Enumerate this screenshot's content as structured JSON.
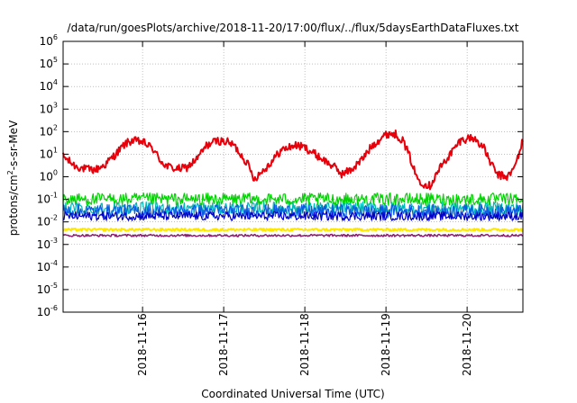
{
  "chart_data": {
    "type": "line",
    "title": "/data/run/goesPlots/archive/2018-11-20/17:00/flux/../flux/5daysEarthDataFluxes.txt",
    "xlabel": "Coordinated Universal Time (UTC)",
    "ylabel": "protons/cm²-s-sr-MeV",
    "ylabel_parts": {
      "pre": "protons/cm",
      "sup": "2",
      "post": "-s-sr-MeV"
    },
    "yscale": "log",
    "ylim_exp": [
      -6,
      6
    ],
    "y_ticks": [
      {
        "base": "10",
        "exp": "-6"
      },
      {
        "base": "10",
        "exp": "-5"
      },
      {
        "base": "10",
        "exp": "-4"
      },
      {
        "base": "10",
        "exp": "-3"
      },
      {
        "base": "10",
        "exp": "-2"
      },
      {
        "base": "10",
        "exp": "-1"
      },
      {
        "base": "10",
        "exp": "0"
      },
      {
        "base": "10",
        "exp": "1"
      },
      {
        "base": "10",
        "exp": "2"
      },
      {
        "base": "10",
        "exp": "3"
      },
      {
        "base": "10",
        "exp": "4"
      },
      {
        "base": "10",
        "exp": "5"
      },
      {
        "base": "10",
        "exp": "6"
      }
    ],
    "xlim": [
      "2018-11-15 00:30",
      "2018-11-20 16:30"
    ],
    "x_ticks": [
      "2018-11-16",
      "2018-11-17",
      "2018-11-18",
      "2018-11-19",
      "2018-11-20"
    ],
    "grid": true,
    "series": [
      {
        "color": "#e8000b",
        "width": 2,
        "noise": 0.18,
        "x": [
          "2018-11-15 00:30",
          "2018-11-15 04:00",
          "2018-11-15 07:00",
          "2018-11-15 10:00",
          "2018-11-15 13:00",
          "2018-11-15 16:00",
          "2018-11-15 19:00",
          "2018-11-15 21:00",
          "2018-11-16 00:00",
          "2018-11-16 03:00",
          "2018-11-16 05:00",
          "2018-11-16 07:00",
          "2018-11-16 10:00",
          "2018-11-16 13:00",
          "2018-11-16 16:00",
          "2018-11-16 19:00",
          "2018-11-16 22:00",
          "2018-11-17 01:00",
          "2018-11-17 03:00",
          "2018-11-17 05:00",
          "2018-11-17 07:00",
          "2018-11-17 09:00",
          "2018-11-17 13:00",
          "2018-11-17 17:00",
          "2018-11-17 21:00",
          "2018-11-18 00:00",
          "2018-11-18 04:00",
          "2018-11-18 07:00",
          "2018-11-18 09:00",
          "2018-11-18 11:00",
          "2018-11-18 14:00",
          "2018-11-18 17:00",
          "2018-11-18 20:00",
          "2018-11-18 23:00",
          "2018-11-19 01:00",
          "2018-11-19 03:00",
          "2018-11-19 05:00",
          "2018-11-19 07:00",
          "2018-11-19 09:00",
          "2018-11-19 11:00",
          "2018-11-19 13:00",
          "2018-11-19 16:00",
          "2018-11-19 19:00",
          "2018-11-19 22:00",
          "2018-11-20 01:00",
          "2018-11-20 03:00",
          "2018-11-20 05:00",
          "2018-11-20 07:00",
          "2018-11-20 09:00",
          "2018-11-20 12:00",
          "2018-11-20 14:00",
          "2018-11-20 16:30"
        ],
        "y": [
          8,
          3,
          2.2,
          2,
          3.5,
          10,
          30,
          40,
          35,
          18,
          6,
          3,
          2.2,
          2.5,
          6,
          25,
          40,
          35,
          25,
          10,
          4,
          0.8,
          3,
          15,
          25,
          20,
          8,
          4,
          2.5,
          1.3,
          2.2,
          6,
          25,
          60,
          85,
          75,
          40,
          8,
          1,
          0.5,
          0.4,
          2.5,
          10,
          40,
          55,
          40,
          18,
          4,
          1.2,
          1,
          2.5,
          40
        ]
      },
      {
        "color": "#00d400",
        "width": 1.2,
        "noise": 0.28,
        "x": [
          "2018-11-15 00:30",
          "2018-11-20 16:30"
        ],
        "y": [
          0.1,
          0.1
        ]
      },
      {
        "color": "#00b7b7",
        "width": 1.2,
        "noise": 0.28,
        "x": [
          "2018-11-15 00:30",
          "2018-11-20 16:30"
        ],
        "y": [
          0.04,
          0.04
        ]
      },
      {
        "color": "#0a5ce0",
        "width": 1.2,
        "noise": 0.3,
        "x": [
          "2018-11-15 00:30",
          "2018-11-20 16:30"
        ],
        "y": [
          0.03,
          0.03
        ]
      },
      {
        "color": "#0000c8",
        "width": 1.2,
        "noise": 0.2,
        "x": [
          "2018-11-15 00:30",
          "2018-11-20 16:30"
        ],
        "y": [
          0.018,
          0.018
        ]
      },
      {
        "color": "#ffe800",
        "width": 2,
        "noise": 0.06,
        "x": [
          "2018-11-15 00:30",
          "2018-11-20 16:30"
        ],
        "y": [
          0.0045,
          0.0045
        ]
      },
      {
        "color": "#8c1c6e",
        "width": 1.5,
        "noise": 0.05,
        "x": [
          "2018-11-15 00:30",
          "2018-11-20 16:30"
        ],
        "y": [
          0.0025,
          0.0025
        ]
      }
    ]
  }
}
